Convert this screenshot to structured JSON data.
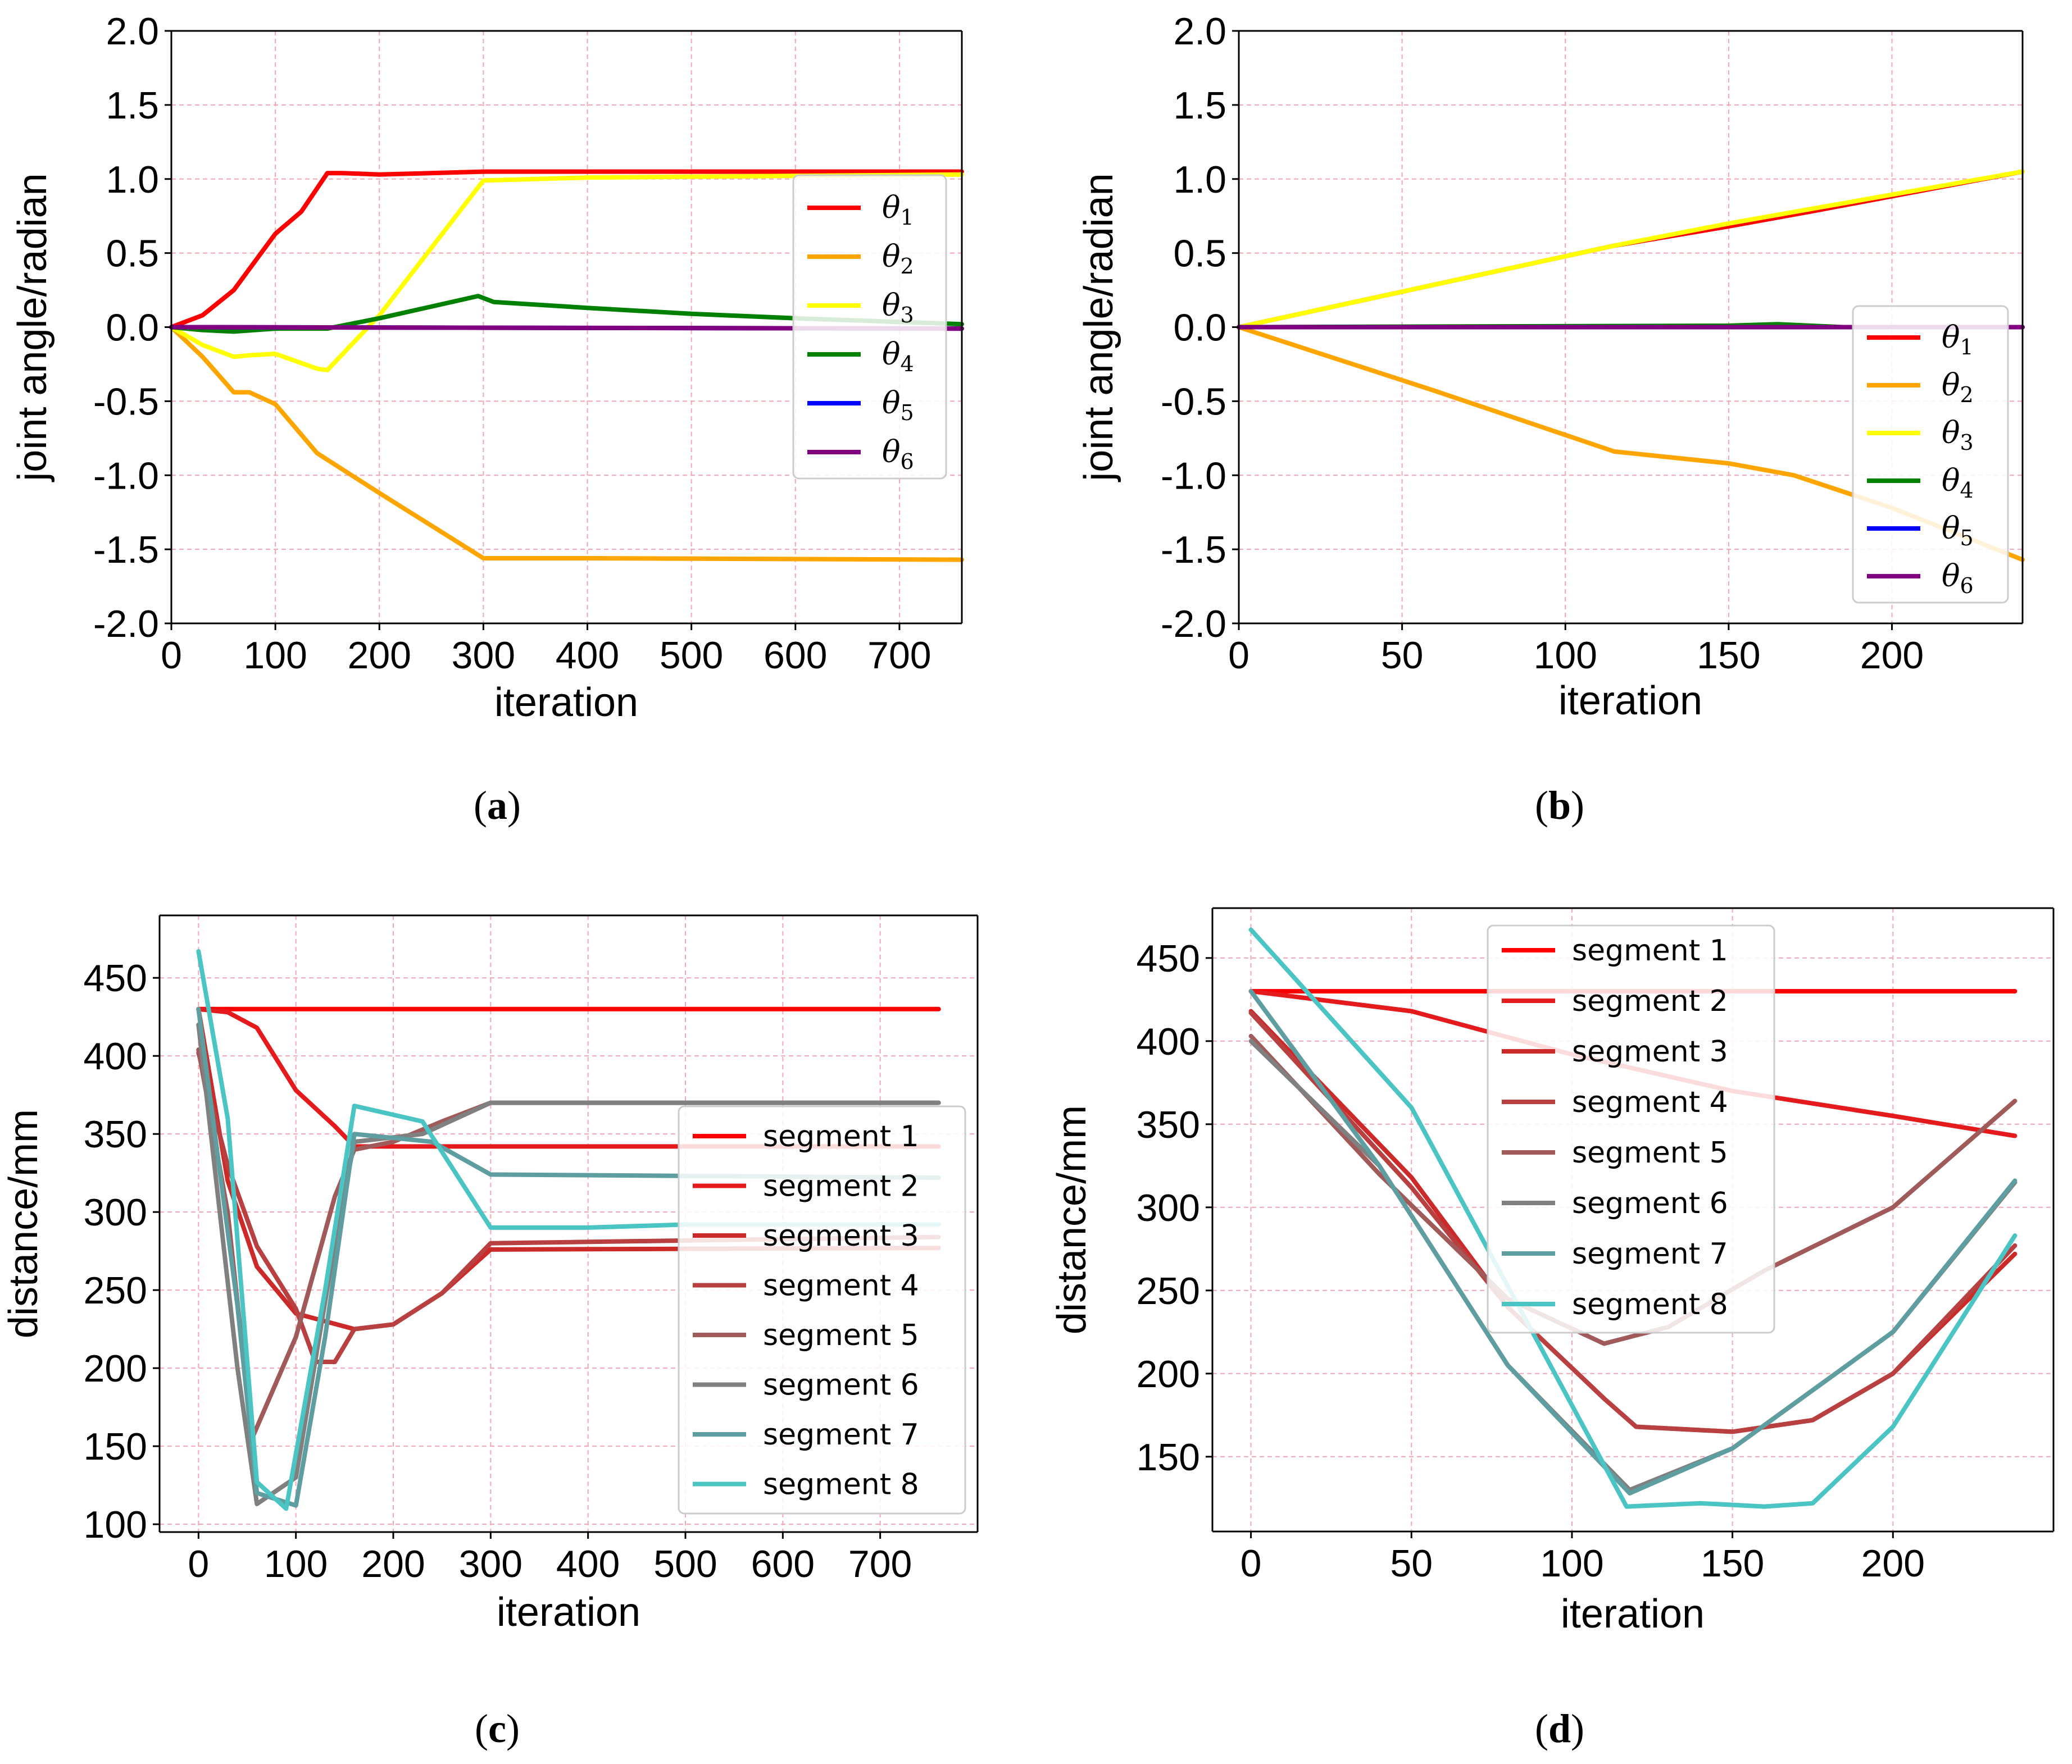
{
  "chart_data": [
    {
      "type": "line",
      "panel": "a",
      "xlabel": "iteration",
      "ylabel": "joint angle/radian",
      "xlim": [
        0,
        760
      ],
      "ylim": [
        -2.0,
        2.0
      ],
      "xticks": [
        0,
        100,
        200,
        300,
        400,
        500,
        600,
        700
      ],
      "yticks": [
        2.0,
        1.5,
        1.0,
        0.5,
        0.0,
        -0.5,
        -1.0,
        -1.5,
        -2.0
      ],
      "ytick_labels": [
        "2.0",
        "1.5",
        "1.0",
        "0.5",
        "0.0",
        "-0.5",
        "-1.0",
        "-1.5",
        "-2.0"
      ],
      "grid": true,
      "legend_position": "center-right",
      "series": [
        {
          "name": "θ1",
          "name_base": "θ",
          "name_sub": "1",
          "color": "#ff0000",
          "points": [
            [
              0,
              0
            ],
            [
              30,
              0.08
            ],
            [
              60,
              0.25
            ],
            [
              100,
              0.63
            ],
            [
              125,
              0.78
            ],
            [
              150,
              1.04
            ],
            [
              165,
              1.04
            ],
            [
              200,
              1.03
            ],
            [
              300,
              1.05
            ],
            [
              400,
              1.05
            ],
            [
              760,
              1.05
            ]
          ]
        },
        {
          "name": "θ2",
          "name_base": "θ",
          "name_sub": "2",
          "color": "#ffa500",
          "points": [
            [
              0,
              0
            ],
            [
              30,
              -0.2
            ],
            [
              60,
              -0.44
            ],
            [
              75,
              -0.44
            ],
            [
              100,
              -0.52
            ],
            [
              140,
              -0.85
            ],
            [
              200,
              -1.12
            ],
            [
              300,
              -1.56
            ],
            [
              400,
              -1.56
            ],
            [
              760,
              -1.57
            ]
          ]
        },
        {
          "name": "θ3",
          "name_base": "θ",
          "name_sub": "3",
          "color": "#ffff00",
          "points": [
            [
              0,
              0
            ],
            [
              30,
              -0.12
            ],
            [
              60,
              -0.2
            ],
            [
              75,
              -0.19
            ],
            [
              100,
              -0.18
            ],
            [
              140,
              -0.28
            ],
            [
              150,
              -0.29
            ],
            [
              200,
              0.08
            ],
            [
              300,
              0.99
            ],
            [
              400,
              1.01
            ],
            [
              760,
              1.03
            ]
          ]
        },
        {
          "name": "θ4",
          "name_base": "θ",
          "name_sub": "4",
          "color": "#008000",
          "points": [
            [
              0,
              0
            ],
            [
              30,
              -0.02
            ],
            [
              60,
              -0.03
            ],
            [
              100,
              -0.01
            ],
            [
              150,
              -0.01
            ],
            [
              200,
              0.06
            ],
            [
              295,
              0.21
            ],
            [
              310,
              0.17
            ],
            [
              400,
              0.13
            ],
            [
              500,
              0.09
            ],
            [
              600,
              0.06
            ],
            [
              760,
              0.02
            ]
          ]
        },
        {
          "name": "θ5",
          "name_base": "θ",
          "name_sub": "5",
          "color": "#0000ff",
          "points": [
            [
              0,
              0
            ],
            [
              760,
              -0.01
            ]
          ]
        },
        {
          "name": "θ6",
          "name_base": "θ",
          "name_sub": "6",
          "color": "#800080",
          "points": [
            [
              0,
              0
            ],
            [
              760,
              -0.01
            ]
          ]
        }
      ]
    },
    {
      "type": "line",
      "panel": "b",
      "xlabel": "iteration",
      "ylabel": "joint angle/radian",
      "xlim": [
        0,
        240
      ],
      "ylim": [
        -2.0,
        2.0
      ],
      "xticks": [
        0,
        50,
        100,
        150,
        200
      ],
      "yticks": [
        2.0,
        1.5,
        1.0,
        0.5,
        0.0,
        -0.5,
        -1.0,
        -1.5,
        -2.0
      ],
      "ytick_labels": [
        "2.0",
        "1.5",
        "1.0",
        "0.5",
        "0.0",
        "-0.5",
        "-1.0",
        "-1.5",
        "-2.0"
      ],
      "grid": true,
      "legend_position": "lower-right",
      "series": [
        {
          "name": "θ1",
          "name_base": "θ",
          "name_sub": "1",
          "color": "#ff0000",
          "points": [
            [
              0,
              0
            ],
            [
              115,
              0.55
            ],
            [
              150,
              0.68
            ],
            [
              175,
              0.78
            ],
            [
              240,
              1.05
            ]
          ]
        },
        {
          "name": "θ2",
          "name_base": "θ",
          "name_sub": "2",
          "color": "#ffa500",
          "points": [
            [
              0,
              0
            ],
            [
              60,
              -0.43
            ],
            [
              115,
              -0.84
            ],
            [
              150,
              -0.92
            ],
            [
              170,
              -1.0
            ],
            [
              200,
              -1.22
            ],
            [
              240,
              -1.57
            ]
          ]
        },
        {
          "name": "θ3",
          "name_base": "θ",
          "name_sub": "3",
          "color": "#ffff00",
          "points": [
            [
              0,
              0
            ],
            [
              115,
              0.55
            ],
            [
              150,
              0.7
            ],
            [
              240,
              1.05
            ]
          ]
        },
        {
          "name": "θ4",
          "name_base": "θ",
          "name_sub": "4",
          "color": "#008000",
          "points": [
            [
              0,
              0
            ],
            [
              150,
              0.01
            ],
            [
              165,
              0.02
            ],
            [
              185,
              0.0
            ],
            [
              240,
              0.0
            ]
          ]
        },
        {
          "name": "θ5",
          "name_base": "θ",
          "name_sub": "5",
          "color": "#0000ff",
          "points": [
            [
              0,
              0
            ],
            [
              240,
              0.0
            ]
          ]
        },
        {
          "name": "θ6",
          "name_base": "θ",
          "name_sub": "6",
          "color": "#800080",
          "points": [
            [
              0,
              0
            ],
            [
              240,
              0.0
            ]
          ]
        }
      ]
    },
    {
      "type": "line",
      "panel": "c",
      "xlabel": "iteration",
      "ylabel": "distance/mm",
      "xlim": [
        -40,
        800
      ],
      "ylim": [
        95,
        490
      ],
      "xticks": [
        0,
        100,
        200,
        300,
        400,
        500,
        600,
        700
      ],
      "yticks": [
        450,
        400,
        350,
        300,
        250,
        200,
        150,
        100
      ],
      "ytick_labels": [
        "450",
        "400",
        "350",
        "300",
        "250",
        "200",
        "150",
        "100"
      ],
      "grid": true,
      "legend_position": "lower-right",
      "series": [
        {
          "name": "segment 1",
          "color": "#ff0000",
          "points": [
            [
              0,
              430
            ],
            [
              760,
              430
            ]
          ]
        },
        {
          "name": "segment 2",
          "color": "#e41a1c",
          "points": [
            [
              0,
              430
            ],
            [
              30,
              428
            ],
            [
              60,
              418
            ],
            [
              100,
              378
            ],
            [
              140,
              355
            ],
            [
              160,
              342
            ],
            [
              300,
              342
            ],
            [
              760,
              342
            ]
          ]
        },
        {
          "name": "segment 3",
          "color": "#cc2929",
          "points": [
            [
              0,
              430
            ],
            [
              30,
              320
            ],
            [
              60,
              265
            ],
            [
              100,
              235
            ],
            [
              160,
              225
            ],
            [
              200,
              228
            ],
            [
              250,
              248
            ],
            [
              300,
              276
            ],
            [
              760,
              277
            ]
          ]
        },
        {
          "name": "segment 4",
          "color": "#b84040",
          "points": [
            [
              0,
              402
            ],
            [
              30,
              330
            ],
            [
              60,
              278
            ],
            [
              100,
              238
            ],
            [
              120,
              204
            ],
            [
              140,
              204
            ],
            [
              160,
              225
            ],
            [
              200,
              228
            ],
            [
              250,
              248
            ],
            [
              300,
              280
            ],
            [
              760,
              284
            ]
          ]
        },
        {
          "name": "segment 5",
          "color": "#a05a5a",
          "points": [
            [
              0,
              404
            ],
            [
              30,
              300
            ],
            [
              55,
              155
            ],
            [
              100,
              220
            ],
            [
              140,
              310
            ],
            [
              160,
              340
            ],
            [
              200,
              345
            ],
            [
              250,
              358
            ],
            [
              300,
              370
            ],
            [
              760,
              370
            ]
          ]
        },
        {
          "name": "segment 6",
          "color": "#808080",
          "points": [
            [
              0,
              420
            ],
            [
              40,
              200
            ],
            [
              60,
              113
            ],
            [
              100,
              130
            ],
            [
              140,
              280
            ],
            [
              160,
              345
            ],
            [
              230,
              350
            ],
            [
              300,
              370
            ],
            [
              760,
              370
            ]
          ]
        },
        {
          "name": "segment 7",
          "color": "#5f9ea0",
          "points": [
            [
              0,
              430
            ],
            [
              40,
              240
            ],
            [
              60,
              120
            ],
            [
              100,
              112
            ],
            [
              130,
              220
            ],
            [
              160,
              350
            ],
            [
              240,
              345
            ],
            [
              300,
              324
            ],
            [
              760,
              322
            ]
          ]
        },
        {
          "name": "segment 8",
          "color": "#4bc4c4",
          "points": [
            [
              0,
              467
            ],
            [
              30,
              360
            ],
            [
              60,
              127
            ],
            [
              90,
              110
            ],
            [
              130,
              250
            ],
            [
              160,
              368
            ],
            [
              230,
              358
            ],
            [
              300,
              290
            ],
            [
              400,
              290
            ],
            [
              500,
              292
            ],
            [
              760,
              292
            ]
          ]
        }
      ]
    },
    {
      "type": "line",
      "panel": "d",
      "xlabel": "iteration",
      "ylabel": "distance/mm",
      "xlim": [
        -12,
        250
      ],
      "ylim": [
        105,
        480
      ],
      "xticks": [
        0,
        50,
        100,
        150,
        200
      ],
      "yticks": [
        450,
        400,
        350,
        300,
        250,
        200,
        150
      ],
      "ytick_labels": [
        "450",
        "400",
        "350",
        "300",
        "250",
        "200",
        "150"
      ],
      "grid": true,
      "legend_position": "upper-center",
      "series": [
        {
          "name": "segment 1",
          "color": "#ff0000",
          "points": [
            [
              0,
              430
            ],
            [
              238,
              430
            ]
          ]
        },
        {
          "name": "segment 2",
          "color": "#e41a1c",
          "points": [
            [
              0,
              430
            ],
            [
              50,
              418
            ],
            [
              100,
              392
            ],
            [
              150,
              370
            ],
            [
              200,
              355
            ],
            [
              238,
              343
            ]
          ]
        },
        {
          "name": "segment 3",
          "color": "#cc2929",
          "points": [
            [
              0,
              418
            ],
            [
              50,
              318
            ],
            [
              80,
              240
            ],
            [
              110,
              185
            ],
            [
              120,
              168
            ],
            [
              150,
              165
            ],
            [
              175,
              172
            ],
            [
              200,
              200
            ],
            [
              238,
              272
            ]
          ]
        },
        {
          "name": "segment 4",
          "color": "#b84040",
          "points": [
            [
              0,
              417
            ],
            [
              50,
              312
            ],
            [
              80,
              240
            ],
            [
              110,
              185
            ],
            [
              120,
              168
            ],
            [
              150,
              165
            ],
            [
              175,
              172
            ],
            [
              200,
              200
            ],
            [
              238,
              277
            ]
          ]
        },
        {
          "name": "segment 5",
          "color": "#a05a5a",
          "points": [
            [
              0,
              403
            ],
            [
              40,
              320
            ],
            [
              80,
              245
            ],
            [
              110,
              218
            ],
            [
              130,
              228
            ],
            [
              160,
              262
            ],
            [
              200,
              300
            ],
            [
              238,
              364
            ]
          ]
        },
        {
          "name": "segment 6",
          "color": "#808080",
          "points": [
            [
              0,
              400
            ],
            [
              40,
              325
            ],
            [
              80,
              205
            ],
            [
              118,
              130
            ],
            [
              150,
              155
            ],
            [
              200,
              225
            ],
            [
              238,
              315
            ]
          ]
        },
        {
          "name": "segment 7",
          "color": "#5f9ea0",
          "points": [
            [
              0,
              430
            ],
            [
              40,
              325
            ],
            [
              80,
              205
            ],
            [
              118,
              128
            ],
            [
              150,
              155
            ],
            [
              200,
              225
            ],
            [
              238,
              316
            ]
          ]
        },
        {
          "name": "segment 8",
          "color": "#4bc4c4",
          "points": [
            [
              0,
              467
            ],
            [
              50,
              360
            ],
            [
              117,
              120
            ],
            [
              140,
              122
            ],
            [
              160,
              120
            ],
            [
              175,
              122
            ],
            [
              200,
              168
            ],
            [
              238,
              283
            ]
          ]
        }
      ]
    }
  ],
  "captions": [
    {
      "open": "(",
      "letter": "a",
      "close": ")"
    },
    {
      "open": "(",
      "letter": "b",
      "close": ")"
    },
    {
      "open": "(",
      "letter": "c",
      "close": ")"
    },
    {
      "open": "(",
      "letter": "d",
      "close": ")"
    }
  ]
}
